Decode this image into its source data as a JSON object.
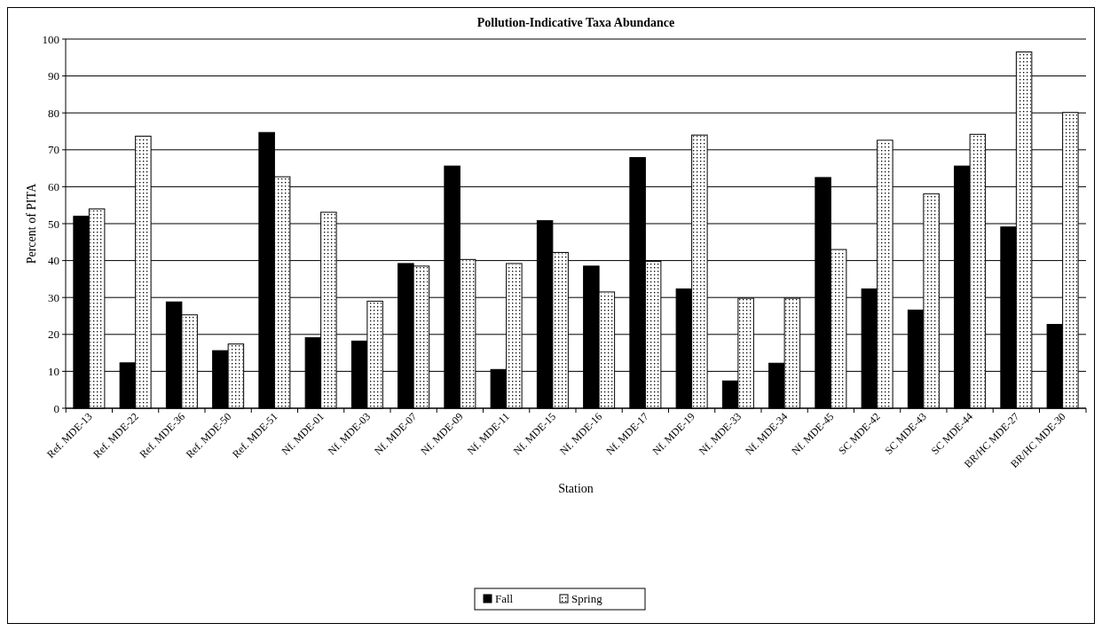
{
  "chart_data": {
    "type": "bar",
    "title": "Pollution-Indicative Taxa Abundance",
    "xlabel": "Station",
    "ylabel": "Percent of PITA",
    "categories": [
      "Ref. MDE-13",
      "Ref. MDE-22",
      "Ref. MDE-36",
      "Ref. MDE-50",
      "Ref. MDE-51",
      "Nf. MDE-01",
      "Nf. MDE-03",
      "Nf. MDE-07",
      "Nf. MDE-09",
      "Nf. MDE-11",
      "Nf. MDE-15",
      "Nf. MDE-16",
      "Nf. MDE-17",
      "Nf. MDE-19",
      "Nf. MDE-33",
      "Nf. MDE-34",
      "Nf. MDE-45",
      "SC MDE-42",
      "SC MDE-43",
      "SC MDE-44",
      "BR/HC MDE-27",
      "BR/HC MDE-30"
    ],
    "series": [
      {
        "name": "Fall",
        "color": "#000000",
        "values": [
          52,
          12.3,
          28.8,
          15.6,
          74.7,
          19.1,
          18.2,
          39.2,
          65.6,
          10.5,
          50.8,
          38.5,
          67.9,
          32.3,
          7.4,
          12.2,
          62.5,
          32.3,
          26.6,
          65.6,
          49.1,
          22.7
        ]
      },
      {
        "name": "Spring",
        "color": "#ffffff",
        "values": [
          54,
          73.7,
          25.3,
          17.4,
          62.7,
          53.1,
          29,
          38.5,
          40.3,
          39.2,
          42.2,
          31.5,
          39.8,
          74,
          29.8,
          29.8,
          43,
          72.6,
          58.1,
          74.2,
          96.5,
          80.1
        ]
      }
    ],
    "ylim": [
      0,
      100
    ],
    "yticks": [
      0,
      10,
      20,
      30,
      40,
      50,
      60,
      70,
      80,
      90,
      100
    ],
    "grid": "y",
    "legend": "bottom"
  }
}
